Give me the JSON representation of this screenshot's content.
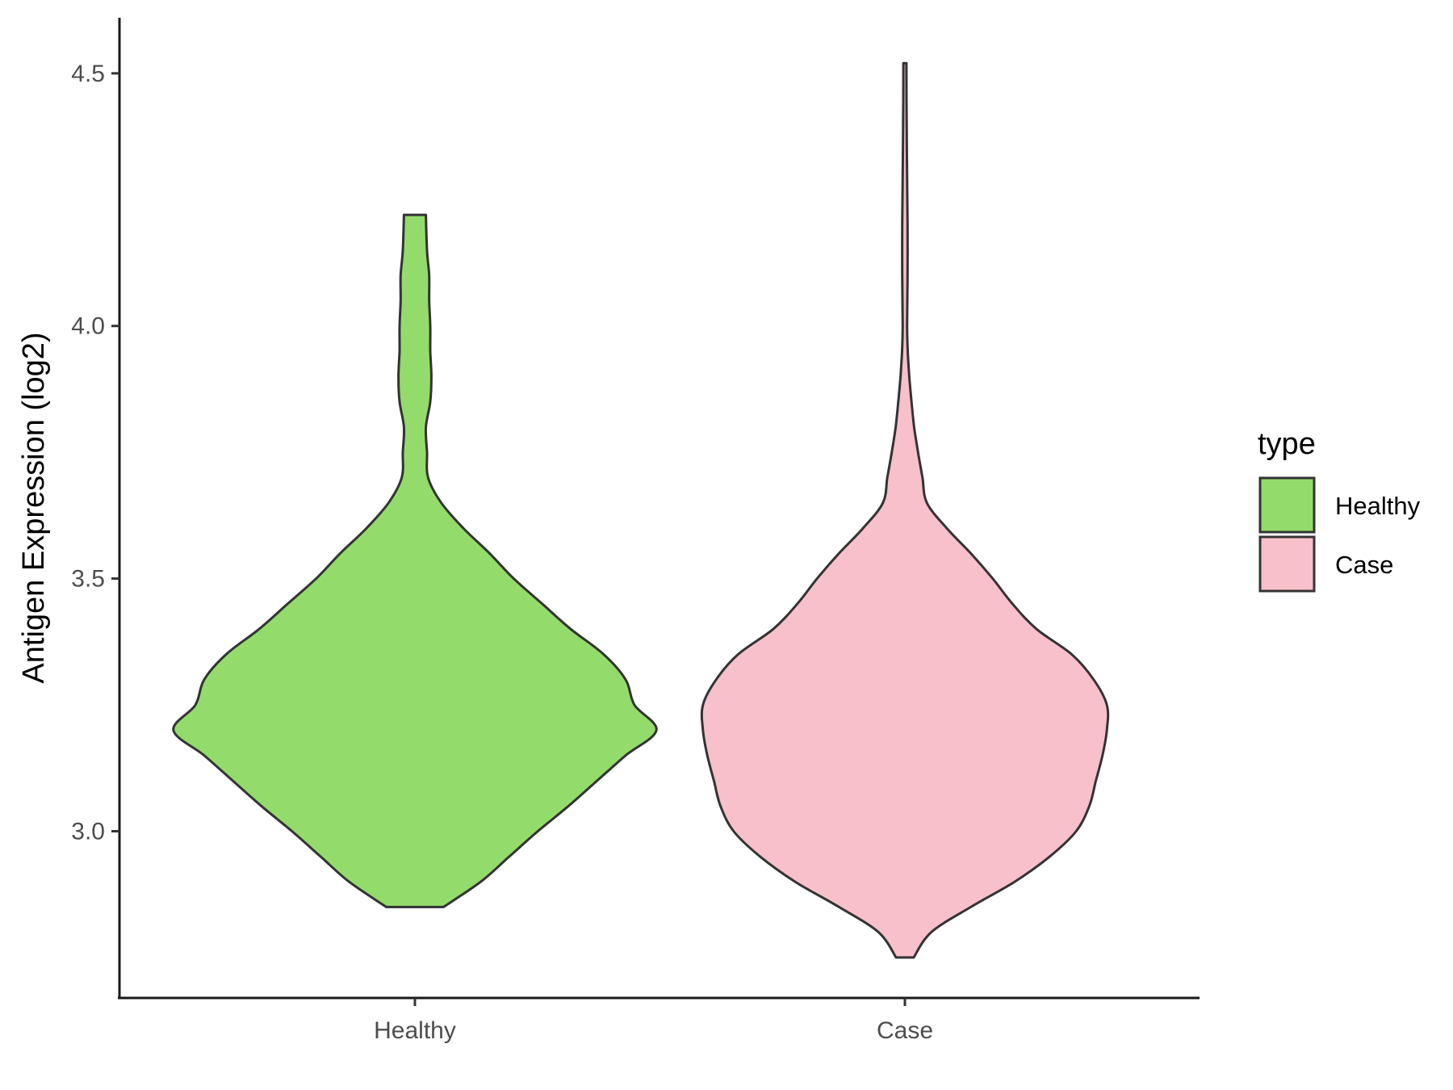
{
  "chart_data": {
    "type": "violin",
    "title": "",
    "xlabel": "",
    "ylabel": "Antigen Expression (log2)",
    "ylim": [
      2.67,
      4.61
    ],
    "yticks": [
      3.0,
      3.5,
      4.0,
      4.5
    ],
    "ytick_labels": [
      "3.0",
      "3.5",
      "4.0",
      "4.5"
    ],
    "grid": false,
    "categories": [
      "Healthy",
      "Case"
    ],
    "legend": {
      "title": "type",
      "placement": "right",
      "items": [
        {
          "label": "Healthy",
          "color": "#93dc6b"
        },
        {
          "label": "Case",
          "color": "#f7c0cb"
        }
      ]
    },
    "series": [
      {
        "name": "Healthy",
        "color": "#93dc6b",
        "min": 2.85,
        "max": 4.22,
        "profile": [
          [
            2.85,
            0.13
          ],
          [
            2.9,
            0.3
          ],
          [
            2.95,
            0.43
          ],
          [
            3.0,
            0.56
          ],
          [
            3.05,
            0.7
          ],
          [
            3.1,
            0.83
          ],
          [
            3.15,
            0.96
          ],
          [
            3.2,
            1.1
          ],
          [
            3.25,
            1.0
          ],
          [
            3.3,
            0.96
          ],
          [
            3.35,
            0.86
          ],
          [
            3.4,
            0.71
          ],
          [
            3.45,
            0.58
          ],
          [
            3.5,
            0.45
          ],
          [
            3.55,
            0.34
          ],
          [
            3.6,
            0.22
          ],
          [
            3.65,
            0.12
          ],
          [
            3.7,
            0.06
          ],
          [
            3.75,
            0.055
          ],
          [
            3.8,
            0.05
          ],
          [
            3.85,
            0.07
          ],
          [
            3.9,
            0.075
          ],
          [
            3.95,
            0.07
          ],
          [
            4.0,
            0.07
          ],
          [
            4.05,
            0.065
          ],
          [
            4.1,
            0.065
          ],
          [
            4.15,
            0.055
          ],
          [
            4.22,
            0.05
          ]
        ]
      },
      {
        "name": "Case",
        "color": "#f7c0cb",
        "min": 2.75,
        "max": 4.52,
        "profile": [
          [
            2.75,
            0.04
          ],
          [
            2.8,
            0.12
          ],
          [
            2.85,
            0.3
          ],
          [
            2.9,
            0.5
          ],
          [
            2.95,
            0.66
          ],
          [
            3.0,
            0.78
          ],
          [
            3.05,
            0.84
          ],
          [
            3.1,
            0.87
          ],
          [
            3.15,
            0.9
          ],
          [
            3.2,
            0.92
          ],
          [
            3.25,
            0.92
          ],
          [
            3.3,
            0.86
          ],
          [
            3.35,
            0.76
          ],
          [
            3.4,
            0.6
          ],
          [
            3.45,
            0.49
          ],
          [
            3.5,
            0.4
          ],
          [
            3.55,
            0.3
          ],
          [
            3.6,
            0.19
          ],
          [
            3.65,
            0.1
          ],
          [
            3.7,
            0.08
          ],
          [
            3.75,
            0.06
          ],
          [
            3.8,
            0.042
          ],
          [
            3.85,
            0.03
          ],
          [
            3.9,
            0.02
          ],
          [
            3.95,
            0.013
          ],
          [
            4.0,
            0.01
          ],
          [
            4.1,
            0.012
          ],
          [
            4.2,
            0.012
          ],
          [
            4.3,
            0.01
          ],
          [
            4.4,
            0.008
          ],
          [
            4.52,
            0.007
          ]
        ]
      }
    ]
  }
}
